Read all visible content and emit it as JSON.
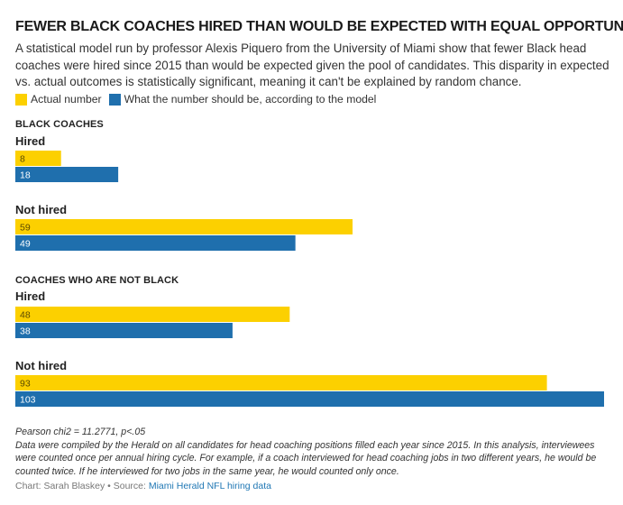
{
  "title": "FEWER BLACK COACHES HIRED THAN WOULD BE EXPECTED WITH EQUAL OPPORTUNITY",
  "subtitle": "A statistical model run by professor Alexis Piquero from the University of Miami show that fewer Black head coaches were hired since 2015 than would be expected given the pool of candidates. This disparity in expected vs. actual outcomes is statistically significant, meaning it can't be explained by random chance.",
  "legend": [
    {
      "label": "Actual number",
      "color": "#fcd000"
    },
    {
      "label": "What the number should be, according to the model",
      "color": "#1f6fad"
    }
  ],
  "chart_data": {
    "type": "bar",
    "orientation": "horizontal",
    "xlim": [
      0,
      103
    ],
    "groups": [
      {
        "name": "BLACK COACHES",
        "categories": [
          {
            "name": "Hired",
            "actual": 8,
            "expected": 18
          },
          {
            "name": "Not hired",
            "actual": 59,
            "expected": 49
          }
        ]
      },
      {
        "name": "COACHES WHO ARE NOT BLACK",
        "categories": [
          {
            "name": "Hired",
            "actual": 48,
            "expected": 38
          },
          {
            "name": "Not hired",
            "actual": 93,
            "expected": 103
          }
        ]
      }
    ],
    "colors": {
      "actual": "#fcd000",
      "expected": "#1f6fad"
    }
  },
  "footnote": {
    "stat": "Pearson chi2 = 11.2771, p<.05",
    "text": "Data were compiled by the Herald on all candidates for head coaching positions filled each year since 2015. In this analysis, interviewees were counted once per annual hiring cycle.  For example, if a coach interviewed for head coaching jobs in two different years, he would be counted twice. If he interviewed for two jobs in the same year, he would counted only once."
  },
  "credit": {
    "prefix": "Chart: Sarah Blaskey • Source: ",
    "link_text": "Miami Herald NFL hiring data"
  }
}
